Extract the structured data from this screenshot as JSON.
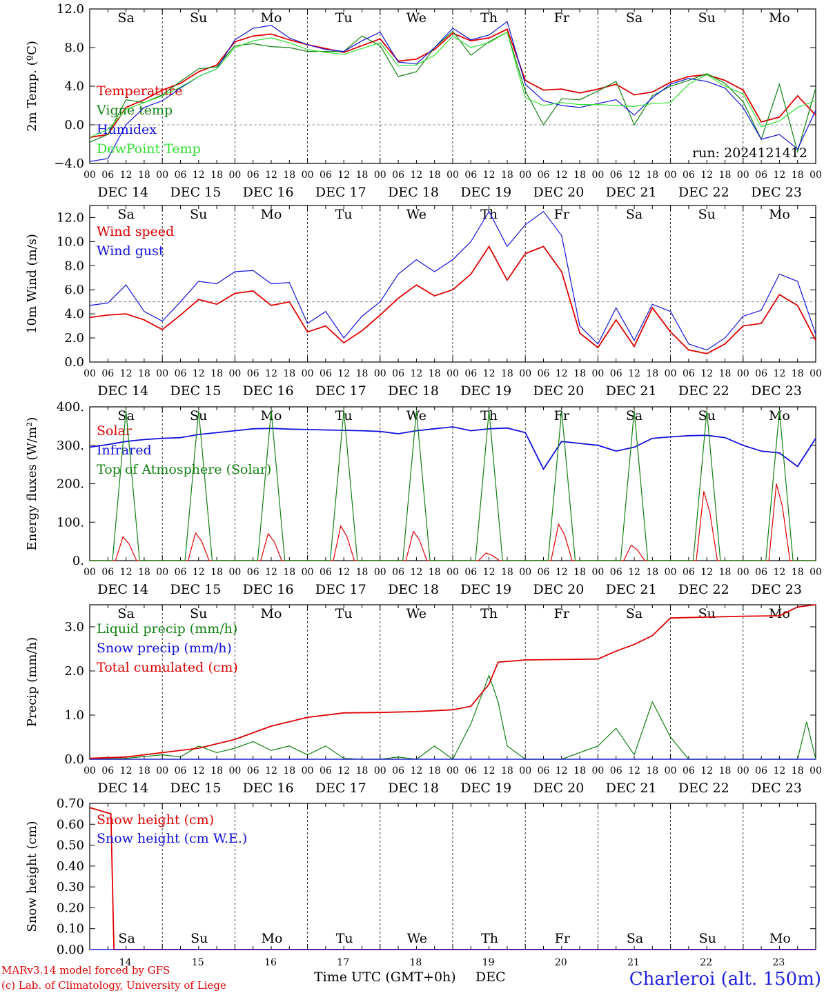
{
  "days": [
    "Sa",
    "Su",
    "Mo",
    "Tu",
    "We",
    "Th",
    "Fr",
    "Sa",
    "Su",
    "Mo"
  ],
  "day_colors": [
    "#e00000",
    "#e00000",
    "#000000",
    "#000000",
    "#000000",
    "#000000",
    "#000000",
    "#e00000",
    "#e00000",
    "#000000"
  ],
  "hour_ticks": [
    "00",
    "06",
    "12",
    "18"
  ],
  "final_tick": "00",
  "dates": [
    "DEC 14",
    "DEC 15",
    "DEC 16",
    "DEC 17",
    "DEC 18",
    "DEC 19",
    "DEC 20",
    "DEC 21",
    "DEC 22",
    "DEC 23"
  ],
  "bottom_dates": [
    "14",
    "15",
    "16",
    "17",
    "18",
    "19",
    "20",
    "21",
    "22",
    "23"
  ],
  "run_label": "run: 2024121412",
  "x_axis_title": "Time UTC (GMT+0h)",
  "x_axis_month": "DEC",
  "footer": {
    "credit_1": "MARv3.14 model forced by GFS",
    "credit_2": "(c) Lab. of Climatology, University of Liege",
    "location": "Charleroi (alt. 150m)"
  },
  "chart_data": [
    {
      "type": "line",
      "ylabel": "2m Temp. (ºC)",
      "ylim": [
        -4,
        12
      ],
      "yticks": [
        "−4.0",
        "0.0",
        "4.0",
        "8.0",
        "12.0"
      ],
      "ytick_values": [
        -4,
        0,
        4,
        8,
        12
      ],
      "ref_line": 0,
      "x_unit": "hours since DEC 14 00 UTC",
      "series": [
        {
          "name": "Temperature",
          "color": "#e00000",
          "x": [
            0,
            6,
            12,
            18,
            24,
            30,
            36,
            42,
            48,
            54,
            60,
            66,
            72,
            78,
            84,
            90,
            96,
            102,
            108,
            114,
            120,
            126,
            132,
            138,
            144,
            150,
            156,
            162,
            168,
            174,
            180,
            186,
            192,
            198,
            204,
            210,
            216,
            222,
            228,
            234,
            240
          ],
          "values": [
            -1.3,
            -1.0,
            1.8,
            2.6,
            3.6,
            4.3,
            5.5,
            6.2,
            8.6,
            9.2,
            9.4,
            8.8,
            8.3,
            7.9,
            7.5,
            8.2,
            8.9,
            6.6,
            6.8,
            7.8,
            9.5,
            8.7,
            9.0,
            9.9,
            4.6,
            3.6,
            3.7,
            3.3,
            3.7,
            4.2,
            3.1,
            3.4,
            4.4,
            5.0,
            5.2,
            4.6,
            3.6,
            0.3,
            0.8,
            3.0,
            1.0
          ]
        },
        {
          "name": "Vigne temp",
          "color": "#108010",
          "x": [
            0,
            6,
            12,
            18,
            24,
            30,
            36,
            42,
            48,
            54,
            60,
            66,
            72,
            78,
            84,
            90,
            96,
            102,
            108,
            114,
            120,
            126,
            132,
            138,
            144,
            150,
            156,
            162,
            168,
            174,
            180,
            186,
            192,
            198,
            204,
            210,
            216,
            222,
            228,
            234,
            240
          ],
          "values": [
            -1.8,
            -1.0,
            2.6,
            2.3,
            3.1,
            4.5,
            5.8,
            6.0,
            8.2,
            8.4,
            8.1,
            8.0,
            7.6,
            7.6,
            7.6,
            9.2,
            8.2,
            5.0,
            5.5,
            8.0,
            9.7,
            7.2,
            8.6,
            9.6,
            3.5,
            0.0,
            2.7,
            2.6,
            3.5,
            4.5,
            0.0,
            3.0,
            4.0,
            4.6,
            5.3,
            4.3,
            2.4,
            -1.5,
            4.2,
            -2.8,
            3.8
          ]
        },
        {
          "name": "Humidex",
          "color": "#1010e0",
          "x": [
            0,
            6,
            12,
            18,
            24,
            30,
            36,
            42,
            48,
            54,
            60,
            66,
            72,
            78,
            84,
            90,
            96,
            102,
            108,
            114,
            120,
            126,
            132,
            138,
            144,
            150,
            156,
            162,
            168,
            174,
            180,
            186,
            192,
            198,
            204,
            210,
            216,
            222,
            228,
            234,
            240
          ],
          "values": [
            -3.8,
            -3.5,
            0.0,
            1.8,
            2.5,
            3.8,
            5.0,
            5.8,
            8.8,
            10.0,
            10.3,
            9.0,
            8.3,
            7.8,
            7.6,
            8.7,
            9.6,
            6.5,
            6.3,
            8.0,
            10.0,
            8.8,
            9.3,
            10.7,
            4.2,
            2.5,
            2.0,
            1.8,
            2.2,
            2.6,
            1.0,
            2.8,
            4.2,
            4.8,
            4.5,
            3.8,
            1.8,
            -1.5,
            -1.0,
            -2.5,
            1.5
          ]
        },
        {
          "name": "DewPoint Temp",
          "color": "#30e030",
          "x": [
            0,
            6,
            12,
            18,
            24,
            30,
            36,
            42,
            48,
            54,
            60,
            66,
            72,
            78,
            84,
            90,
            96,
            102,
            108,
            114,
            120,
            126,
            132,
            138,
            144,
            150,
            156,
            162,
            168,
            174,
            180,
            186,
            192,
            198,
            204,
            210,
            216,
            222,
            228,
            234,
            240
          ],
          "values": [
            -1.3,
            -0.5,
            1.6,
            2.3,
            3.0,
            3.9,
            5.0,
            5.8,
            8.0,
            8.7,
            9.0,
            8.5,
            7.8,
            7.5,
            7.3,
            7.9,
            8.5,
            6.1,
            6.2,
            7.2,
            9.2,
            8.0,
            8.5,
            9.6,
            2.8,
            2.0,
            2.3,
            2.1,
            2.1,
            2.0,
            1.9,
            2.2,
            2.3,
            4.2,
            5.2,
            4.0,
            3.2,
            -0.2,
            0.4,
            1.8,
            2.5
          ]
        }
      ]
    },
    {
      "type": "line",
      "ylabel": "10m Wind (m/s)",
      "ylim": [
        0,
        13
      ],
      "yticks": [
        "0.0",
        "2.0",
        "4.0",
        "6.0",
        "8.0",
        "10.0",
        "12.0"
      ],
      "ytick_values": [
        0,
        2,
        4,
        6,
        8,
        10,
        12
      ],
      "ref_line": 5,
      "x_unit": "hours since DEC 14 00 UTC",
      "series": [
        {
          "name": "Wind speed",
          "color": "#e00000",
          "x": [
            0,
            6,
            12,
            18,
            24,
            30,
            36,
            42,
            48,
            54,
            60,
            66,
            72,
            78,
            84,
            90,
            96,
            102,
            108,
            114,
            120,
            126,
            132,
            138,
            144,
            150,
            156,
            162,
            168,
            174,
            180,
            186,
            192,
            198,
            204,
            210,
            216,
            222,
            228,
            234,
            240
          ],
          "values": [
            3.7,
            3.9,
            4.0,
            3.5,
            2.7,
            3.9,
            5.2,
            4.8,
            5.7,
            5.9,
            4.7,
            5.0,
            2.5,
            3.0,
            1.6,
            2.6,
            3.9,
            5.3,
            6.4,
            5.5,
            6.0,
            7.3,
            9.6,
            6.8,
            9.0,
            9.6,
            7.5,
            2.4,
            1.2,
            3.5,
            1.3,
            4.5,
            2.5,
            1.0,
            0.7,
            1.5,
            3.0,
            3.2,
            5.6,
            4.7,
            1.8
          ]
        },
        {
          "name": "Wind gust",
          "color": "#1010e0",
          "x": [
            0,
            6,
            12,
            18,
            24,
            30,
            36,
            42,
            48,
            54,
            60,
            66,
            72,
            78,
            84,
            90,
            96,
            102,
            108,
            114,
            120,
            126,
            132,
            138,
            144,
            150,
            156,
            162,
            168,
            174,
            180,
            186,
            192,
            198,
            204,
            210,
            216,
            222,
            228,
            234,
            240
          ],
          "values": [
            4.7,
            4.9,
            6.4,
            4.2,
            3.4,
            5.0,
            6.7,
            6.5,
            7.5,
            7.6,
            6.5,
            6.6,
            3.2,
            4.2,
            2.0,
            3.8,
            5.0,
            7.3,
            8.5,
            7.5,
            8.5,
            10.0,
            12.5,
            9.6,
            11.4,
            12.5,
            10.5,
            3.0,
            1.5,
            4.5,
            1.8,
            4.8,
            4.2,
            1.5,
            1.0,
            2.0,
            3.8,
            4.3,
            7.3,
            6.7,
            2.3
          ]
        }
      ]
    },
    {
      "type": "line",
      "ylabel": "Energy fluxes (W/m²)",
      "ylim": [
        0,
        400
      ],
      "yticks": [
        "0.",
        "100.",
        "200.",
        "300.",
        "400."
      ],
      "ytick_values": [
        0,
        100,
        200,
        300,
        400
      ],
      "x_unit": "hours since DEC 14 00 UTC",
      "series": [
        {
          "name": "Solar",
          "color": "#e00000",
          "day_peaks": [
            62,
            72,
            70,
            90,
            76,
            20,
            95,
            40,
            180,
            200
          ]
        },
        {
          "name": "Infrared",
          "color": "#1010e0",
          "x": [
            0,
            6,
            12,
            18,
            24,
            30,
            36,
            42,
            48,
            54,
            60,
            66,
            72,
            78,
            84,
            90,
            96,
            102,
            108,
            114,
            120,
            126,
            132,
            138,
            144,
            150,
            156,
            162,
            168,
            174,
            180,
            186,
            192,
            198,
            204,
            210,
            216,
            222,
            228,
            234,
            240
          ],
          "values": [
            295,
            302,
            310,
            315,
            318,
            320,
            328,
            333,
            338,
            343,
            344,
            342,
            341,
            340,
            339,
            338,
            336,
            330,
            338,
            343,
            348,
            338,
            343,
            345,
            333,
            238,
            310,
            305,
            300,
            285,
            295,
            318,
            322,
            325,
            326,
            320,
            300,
            285,
            280,
            245,
            318
          ]
        },
        {
          "name": "Top of Atmosphere (Solar)",
          "color": "#108010",
          "day_peak": 390
        }
      ]
    },
    {
      "type": "line",
      "ylabel": "Precip (mm/h)",
      "ylim": [
        0,
        3.5
      ],
      "yticks": [
        "0.0",
        "1.0",
        "2.0",
        "3.0"
      ],
      "ytick_values": [
        0,
        1,
        2,
        3
      ],
      "x_unit": "hours since DEC 14 00 UTC",
      "series": [
        {
          "name": "Liquid precip (mm/h)",
          "color": "#108010",
          "x": [
            0,
            12,
            24,
            30,
            36,
            42,
            48,
            54,
            60,
            66,
            72,
            78,
            84,
            90,
            96,
            102,
            108,
            114,
            120,
            126,
            132,
            135,
            138,
            144,
            156,
            168,
            174,
            180,
            186,
            192,
            198,
            204,
            216,
            228,
            234,
            237,
            240
          ],
          "values": [
            0,
            0.02,
            0.1,
            0.05,
            0.3,
            0.15,
            0.25,
            0.4,
            0.2,
            0.3,
            0.1,
            0.3,
            0.02,
            0,
            0,
            0.05,
            0,
            0.3,
            0,
            0.8,
            1.9,
            1.3,
            0.3,
            0,
            0,
            0.3,
            0.7,
            0.1,
            1.3,
            0.5,
            0,
            0,
            0,
            0,
            0,
            0.85,
            0
          ]
        },
        {
          "name": "Snow precip (mm/h)",
          "color": "#1010e0",
          "x": [
            0,
            240
          ],
          "values": [
            0,
            0
          ]
        },
        {
          "name": "Total cumulated (cm)",
          "color": "#e00000",
          "x": [
            0,
            12,
            24,
            36,
            48,
            60,
            72,
            84,
            96,
            108,
            120,
            126,
            132,
            135,
            144,
            156,
            168,
            174,
            180,
            186,
            192,
            204,
            216,
            228,
            234,
            240
          ],
          "values": [
            0.02,
            0.05,
            0.15,
            0.25,
            0.45,
            0.75,
            0.95,
            1.05,
            1.06,
            1.08,
            1.12,
            1.2,
            1.7,
            2.2,
            2.25,
            2.26,
            2.27,
            2.45,
            2.6,
            2.8,
            3.2,
            3.22,
            3.24,
            3.25,
            3.45,
            3.5
          ]
        }
      ]
    },
    {
      "type": "line",
      "ylabel": "Snow height (cm)",
      "ylim": [
        0,
        0.7
      ],
      "yticks": [
        "0.00",
        "0.10",
        "0.20",
        "0.30",
        "0.40",
        "0.50",
        "0.60",
        "0.70"
      ],
      "ytick_values": [
        0,
        0.1,
        0.2,
        0.3,
        0.4,
        0.5,
        0.6,
        0.7
      ],
      "x_unit": "hours since DEC 14 00 UTC",
      "series": [
        {
          "name": "Snow height (cm)",
          "color": "#e00000",
          "x": [
            0,
            7,
            8,
            240
          ],
          "values": [
            0.68,
            0.65,
            0,
            0
          ]
        },
        {
          "name": "Snow height (cm W.E.)",
          "color": "#1010e0",
          "x": [
            0,
            240
          ],
          "values": [
            0,
            0
          ]
        }
      ]
    }
  ]
}
